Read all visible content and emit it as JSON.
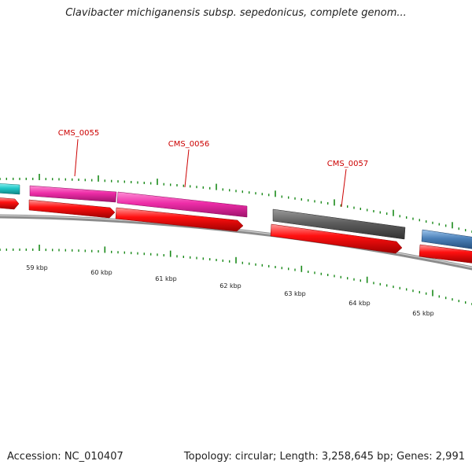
{
  "title": "Clavibacter michiganensis subsp. sepedonicus, complete genom...",
  "footer": {
    "accession": "Accession: NC_010407",
    "summary": "Topology: circular; Length: 3,258,645 bp; Genes: 2,991"
  },
  "colors": {
    "cds": "#ff0000",
    "gene_pink": "#ee2da8",
    "gene_cyan": "#22c8c8",
    "gene_gray": "#5e5e5e",
    "gene_blue": "#4a80b8",
    "tick": "#1a8a1a",
    "label": "#cc0000",
    "backbone": "#8c8c8c"
  },
  "gene_labels": [
    {
      "text": "CMS_0055"
    },
    {
      "text": "CMS_0056"
    },
    {
      "text": "CMS_0057"
    }
  ],
  "scale_labels": [
    "59 kbp",
    "60 kbp",
    "61 kbp",
    "62 kbp",
    "63 kbp",
    "64 kbp",
    "65 kbp"
  ]
}
